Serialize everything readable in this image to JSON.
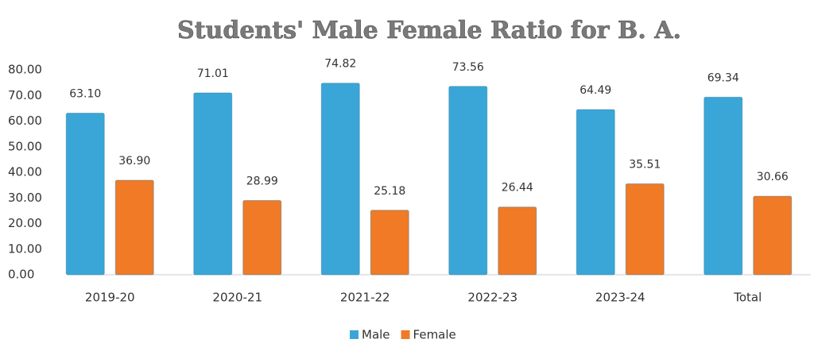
{
  "chart_data": {
    "type": "bar",
    "title": "Students' Male Female Ratio  for B. A.",
    "categories": [
      "2019-20",
      "2020-21",
      "2021-22",
      "2022-23",
      "2023-24",
      "Total"
    ],
    "series": [
      {
        "name": "Male",
        "color": "#3aa6d8",
        "values": [
          63.1,
          71.01,
          74.82,
          73.56,
          64.49,
          69.34
        ],
        "value_labels": [
          "63.10",
          "71.01",
          "74.82",
          "73.56",
          "64.49",
          "69.34"
        ]
      },
      {
        "name": "Female",
        "color": "#f07a26",
        "values": [
          36.9,
          28.99,
          25.18,
          26.44,
          35.51,
          30.66
        ],
        "value_labels": [
          "36.90",
          "28.99",
          "25.18",
          "26.44",
          "35.51",
          "30.66"
        ]
      }
    ],
    "ylim": [
      0,
      80
    ],
    "yticks": [
      {
        "value": 0,
        "label": "0.00"
      },
      {
        "value": 10,
        "label": "10.00"
      },
      {
        "value": 20,
        "label": "20.00"
      },
      {
        "value": 30,
        "label": "30.00"
      },
      {
        "value": 40,
        "label": "40.00"
      },
      {
        "value": 50,
        "label": "50.00"
      },
      {
        "value": 60,
        "label": "60.00"
      },
      {
        "value": 70,
        "label": "70.00"
      },
      {
        "value": 80,
        "label": "80.00"
      }
    ],
    "grid": false,
    "legend": "bottom"
  }
}
